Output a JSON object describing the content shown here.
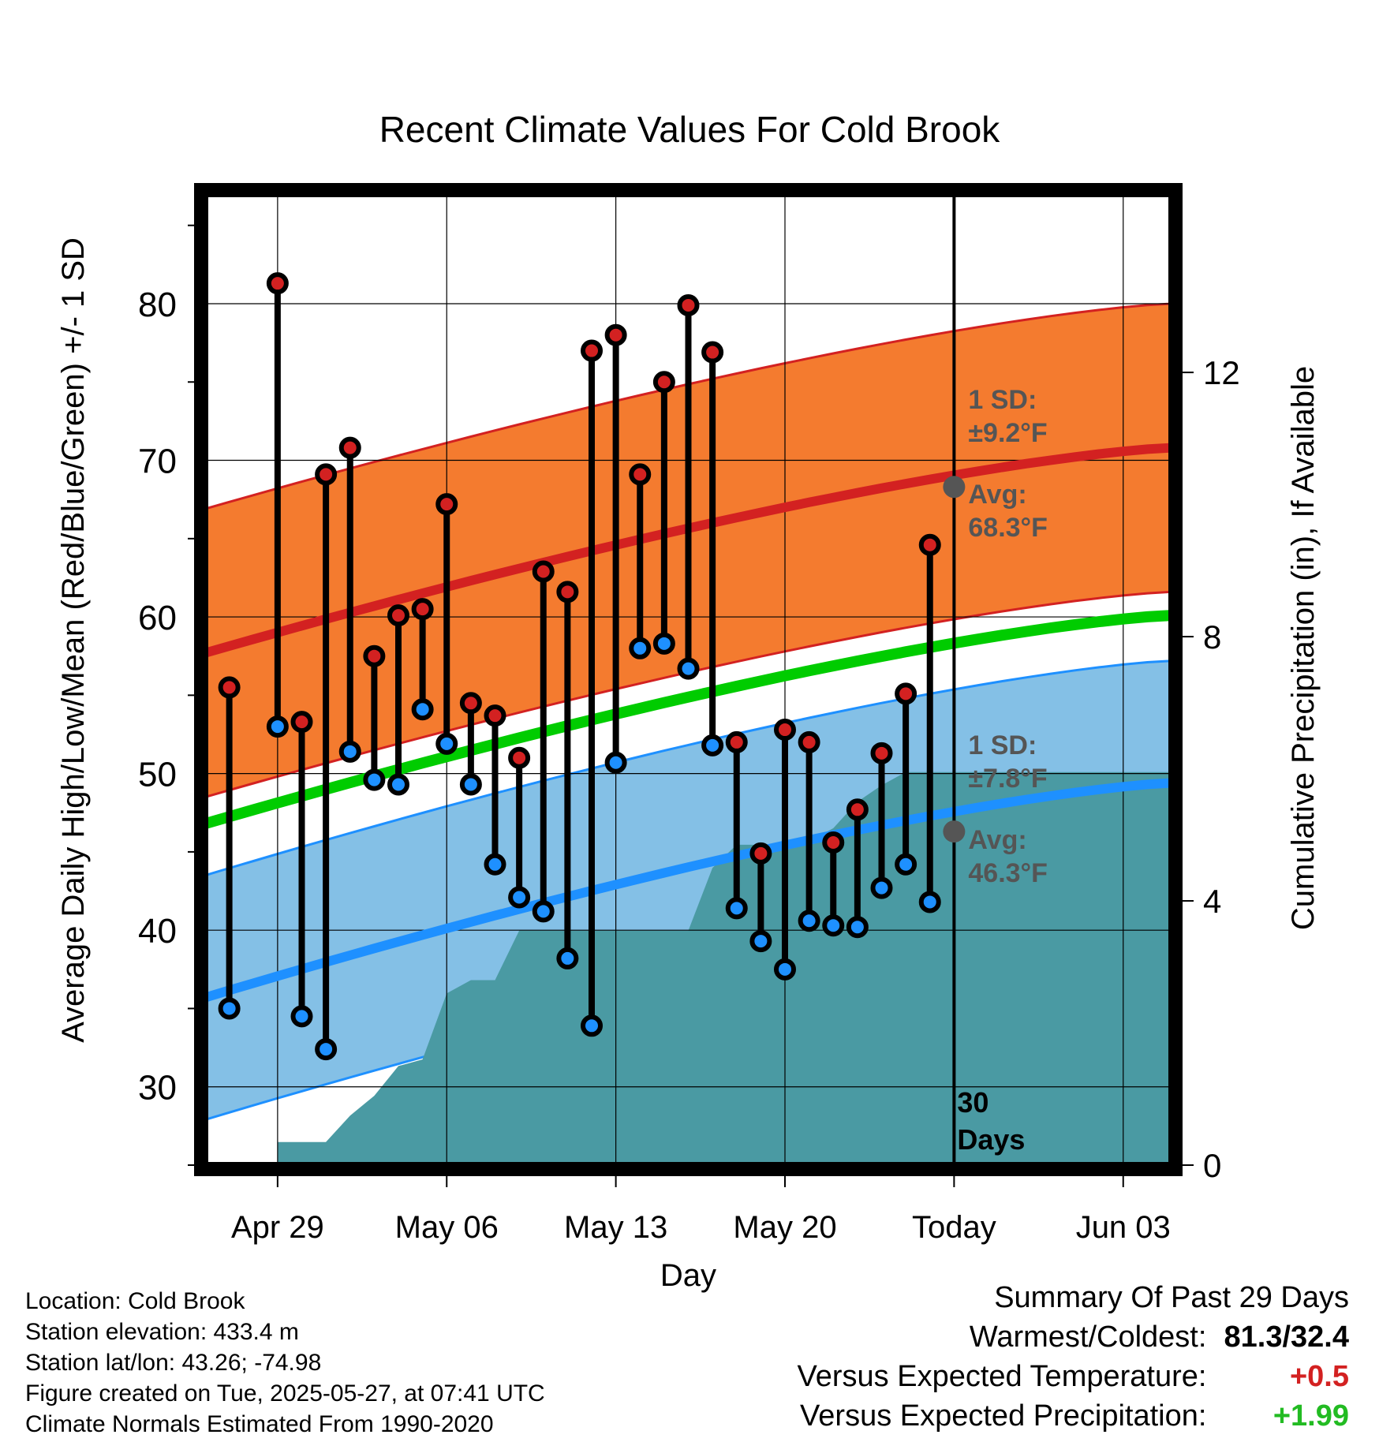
{
  "chart_data": {
    "type": "line",
    "title": "Recent Climate Values For Cold Brook",
    "xlabel": "Day",
    "ylabel": "Average Daily High/Low/Mean (Red/Blue/Green) +/- 1 SD",
    "y2label": "Cumulative Precipitation (in), If Available",
    "x_tick_labels": [
      "Apr 29",
      "May 06",
      "May 13",
      "May 20",
      "Today",
      "Jun 03"
    ],
    "x_tick_dates": [
      "2025-04-29",
      "2025-05-06",
      "2025-05-13",
      "2025-05-20",
      "2025-05-27",
      "2025-06-03"
    ],
    "x_range": [
      "2025-04-26",
      "2025-06-05"
    ],
    "ylim": [
      25,
      87
    ],
    "y_ticks": [
      30,
      40,
      50,
      60,
      70,
      80
    ],
    "y2lim": [
      0,
      14.7
    ],
    "y2_ticks": [
      0,
      4,
      8,
      12
    ],
    "grid": true,
    "days": [
      "2025-04-27",
      "2025-04-29",
      "2025-04-30",
      "2025-05-01",
      "2025-05-02",
      "2025-05-03",
      "2025-05-04",
      "2025-05-05",
      "2025-05-06",
      "2025-05-07",
      "2025-05-08",
      "2025-05-09",
      "2025-05-10",
      "2025-05-11",
      "2025-05-12",
      "2025-05-13",
      "2025-05-14",
      "2025-05-15",
      "2025-05-16",
      "2025-05-17",
      "2025-05-18",
      "2025-05-19",
      "2025-05-20",
      "2025-05-21",
      "2025-05-22",
      "2025-05-23",
      "2025-05-24",
      "2025-05-25",
      "2025-05-26"
    ],
    "highs": [
      55.5,
      81.3,
      53.3,
      69.1,
      70.8,
      57.5,
      60.1,
      60.5,
      67.2,
      54.5,
      53.7,
      51.0,
      62.9,
      61.6,
      77.0,
      78.0,
      69.1,
      75.0,
      79.9,
      76.9,
      52.0,
      44.9,
      52.8,
      52.0,
      45.6,
      47.7,
      51.3,
      55.1,
      64.6
    ],
    "lows": [
      35.0,
      53.0,
      34.5,
      32.4,
      51.4,
      49.6,
      49.3,
      54.1,
      51.9,
      49.3,
      44.2,
      42.1,
      41.2,
      38.2,
      33.9,
      50.7,
      58.0,
      58.3,
      56.7,
      51.8,
      41.4,
      39.3,
      37.5,
      40.6,
      40.3,
      40.2,
      42.7,
      44.2,
      41.8
    ],
    "normal_high": {
      "start": 57.7,
      "today": 68.3,
      "end": 70.8,
      "sd": 9.2
    },
    "normal_low": {
      "start": 35.7,
      "today": 46.3,
      "end": 49.4,
      "sd": 7.8
    },
    "normal_mean": {
      "start": 46.8,
      "end": 60.1
    },
    "precip_cumulative": [
      {
        "date": "2025-04-29",
        "value": 0.35
      },
      {
        "date": "2025-05-01",
        "value": 0.35
      },
      {
        "date": "2025-05-02",
        "value": 0.75
      },
      {
        "date": "2025-05-03",
        "value": 1.05
      },
      {
        "date": "2025-05-04",
        "value": 1.5
      },
      {
        "date": "2025-05-05",
        "value": 1.6
      },
      {
        "date": "2025-05-06",
        "value": 2.6
      },
      {
        "date": "2025-05-07",
        "value": 2.8
      },
      {
        "date": "2025-05-08",
        "value": 2.8
      },
      {
        "date": "2025-05-09",
        "value": 3.55
      },
      {
        "date": "2025-05-16",
        "value": 3.55
      },
      {
        "date": "2025-05-17",
        "value": 4.5
      },
      {
        "date": "2025-05-18",
        "value": 4.85
      },
      {
        "date": "2025-05-20",
        "value": 4.85
      },
      {
        "date": "2025-05-21",
        "value": 4.9
      },
      {
        "date": "2025-05-22",
        "value": 5.1
      },
      {
        "date": "2025-05-23",
        "value": 5.5
      },
      {
        "date": "2025-05-24",
        "value": 5.75
      },
      {
        "date": "2025-05-25",
        "value": 5.95
      },
      {
        "date": "2025-05-26",
        "value": 5.95
      },
      {
        "date": "2025-06-05",
        "value": 5.95
      }
    ],
    "annotations": {
      "high_sd": "1 SD:",
      "high_sd_val": "±9.2°F",
      "high_avg": "Avg:",
      "high_avg_val": "68.3°F",
      "low_sd": "1 SD:",
      "low_sd_val": "±7.8°F",
      "low_avg": "Avg:",
      "low_avg_val": "46.3°F",
      "days_count": "30",
      "days_word": "Days"
    },
    "colors": {
      "high_band": "#f47b2f",
      "high_line": "#d32121",
      "low_band": "#84c0e6",
      "low_line": "#1e90ff",
      "mean_line": "#00cc00",
      "precip": "#4a9aa3",
      "high_dot": "#d32121",
      "low_dot": "#1e90ff",
      "avg_dot": "#555555"
    }
  },
  "info": {
    "location": "Location: Cold Brook",
    "elevation": "Station elevation: 433.4 m",
    "latlon": "Station lat/lon: 43.26; -74.98",
    "created": "Figure created on Tue, 2025-05-27, at 07:41 UTC",
    "normals": "Climate Normals Estimated From 1990-2020"
  },
  "summary": {
    "header": "Summary Of Past 29 Days",
    "warmest_label": "Warmest/Coldest:",
    "warmest_value": "81.3/32.4",
    "temp_label": "Versus Expected Temperature:",
    "temp_value": "+0.5",
    "precip_label": "Versus Expected Precipitation:",
    "precip_value": "+1.99",
    "temp_color": "#d32121",
    "precip_color": "#22bb22"
  }
}
